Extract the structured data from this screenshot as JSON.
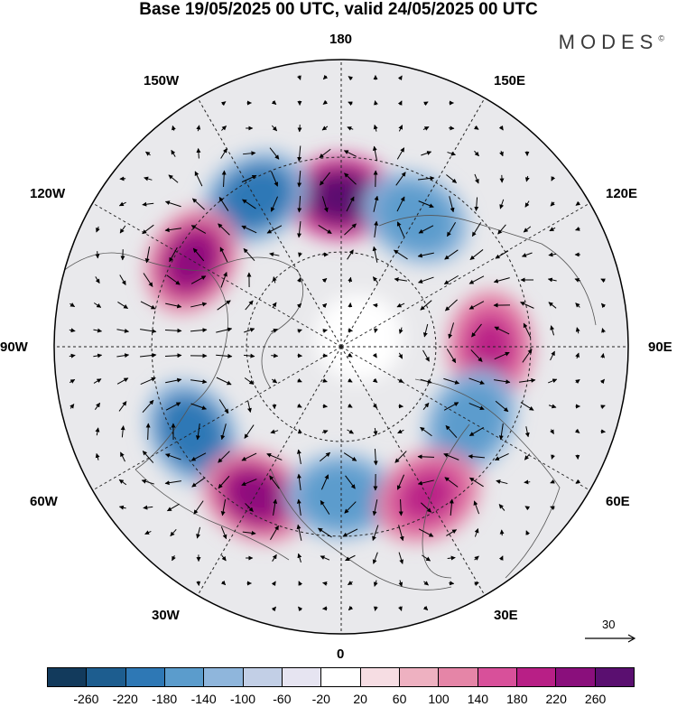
{
  "title": "Base 19/05/2025 00 UTC, valid 24/05/2025 00 UTC",
  "brand": "MODES",
  "brand_mark": "©",
  "longitude_labels": {
    "n": "180",
    "s": "0",
    "e": "90E",
    "w": "90W",
    "ne150": "150E",
    "ne120": "120E",
    "se60": "60E",
    "se30": "30E",
    "nw150": "150W",
    "nw120": "120W",
    "sw60": "60W",
    "sw30": "30W"
  },
  "reference_vector": "30",
  "colorbar": {
    "colors": [
      "#123a5c",
      "#1d5d8f",
      "#2e78b5",
      "#5b9ccc",
      "#8fb6dc",
      "#c2cfe6",
      "#e6e4f1",
      "#ffffff",
      "#f6dde3",
      "#eeb1c1",
      "#e585a7",
      "#d8509a",
      "#b81f86",
      "#8a0f7c",
      "#5a0f70"
    ],
    "ticks": [
      "-260",
      "-220",
      "-180",
      "-140",
      "-100",
      "-60",
      "-20",
      "20",
      "60",
      "100",
      "140",
      "180",
      "220",
      "260"
    ]
  },
  "map": {
    "projection": "north-polar-stereographic",
    "field": "geopotential height anomaly (shaded) with wind vectors",
    "anomaly_centres": [
      {
        "lon_label": "180",
        "sign": "positive",
        "level": 260
      },
      {
        "lon_label": "150W",
        "sign": "negative",
        "level": -220
      },
      {
        "lon_label": "150E",
        "sign": "negative",
        "level": -180
      },
      {
        "lon_label": "120W",
        "sign": "positive",
        "level": 220
      },
      {
        "lon_label": "90E",
        "sign": "positive",
        "level": 180
      },
      {
        "lon_label": "60W",
        "sign": "negative",
        "level": -220
      },
      {
        "lon_label": "60E",
        "sign": "negative",
        "level": -180
      },
      {
        "lon_label": "30W",
        "sign": "positive",
        "level": 220
      },
      {
        "lon_label": "0",
        "sign": "negative",
        "level": -180
      },
      {
        "lon_label": "30E",
        "sign": "positive",
        "level": 180
      }
    ]
  }
}
